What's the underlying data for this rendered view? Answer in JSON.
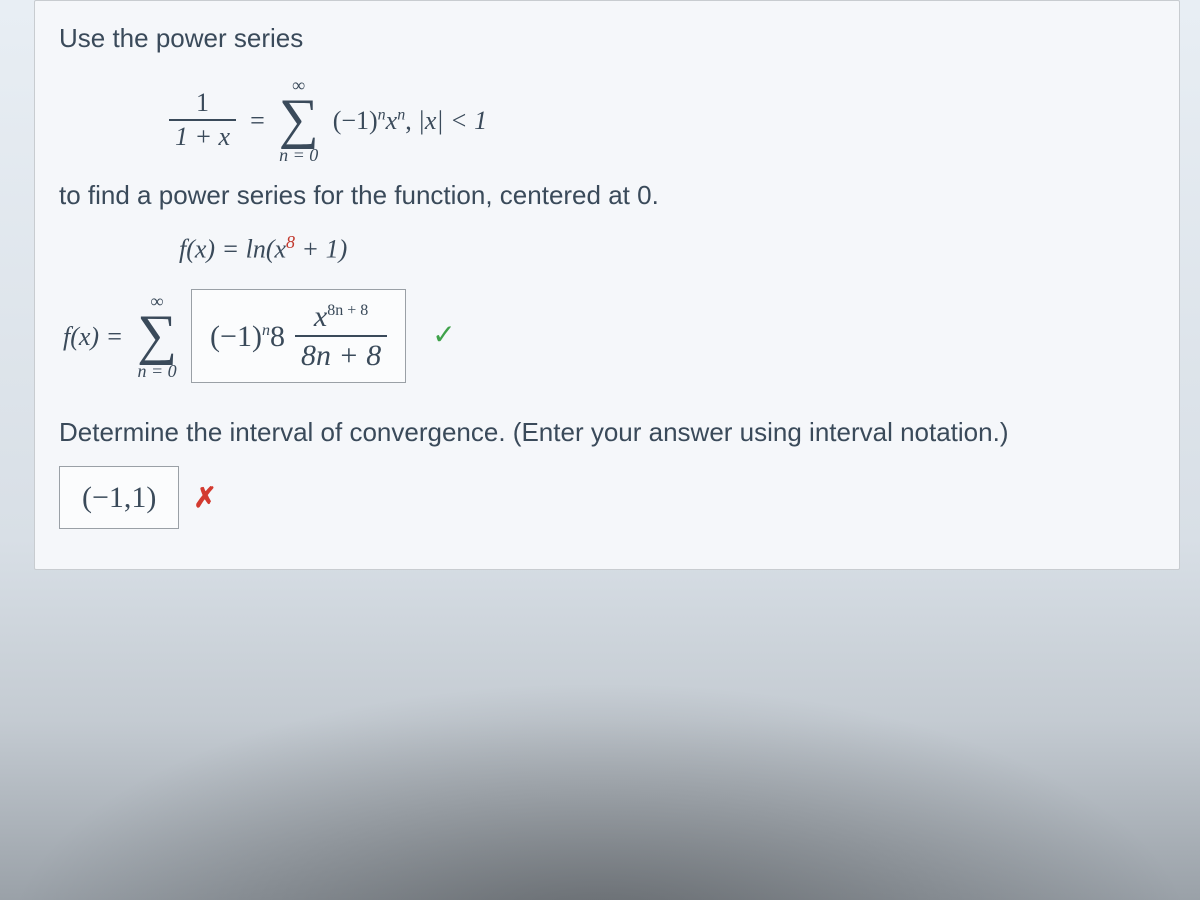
{
  "colors": {
    "text": "#3a4a5a",
    "card_bg": "#f5f7fa",
    "card_border": "#c8ccd0",
    "box_border": "#9aa0a6",
    "box_bg": "#fbfcfd",
    "check": "#3fa24a",
    "cross": "#d33a2f",
    "sup8": "#c23a2f"
  },
  "fonts": {
    "body_family": "Arial",
    "math_family": "Times New Roman",
    "body_size_pt": 20,
    "math_size_pt": 22,
    "sigma_size_pt": 42
  },
  "prompt": {
    "line1": "Use the power series",
    "line2": "to find a power series for the function, centered at 0.",
    "interval_prompt": "Determine the interval of convergence. (Enter your answer using interval notation.)"
  },
  "given_series": {
    "lhs_num": "1",
    "lhs_den": "1 + x",
    "eq": "=",
    "sum_upper": "∞",
    "sum_lower": "n = 0",
    "term": "(−1)",
    "term_sup": "n",
    "var": "x",
    "var_sup": "n",
    "comma": ",",
    "cond": "|x| < 1"
  },
  "target_fn": {
    "lhs": "f(x) = ln(x",
    "sup": "8",
    "rhs": " + 1)"
  },
  "answer1": {
    "lhs": "f(x) = ",
    "sum_upper": "∞",
    "sum_lower": "n = 0",
    "term1": "(−1)",
    "term1_sup": "n",
    "term2": "8 ",
    "frac_num_var": "x",
    "frac_num_sup": "8n + 8",
    "frac_den": "8n + 8",
    "status": "correct"
  },
  "answer2": {
    "value": "(−1,1)",
    "status": "incorrect"
  }
}
